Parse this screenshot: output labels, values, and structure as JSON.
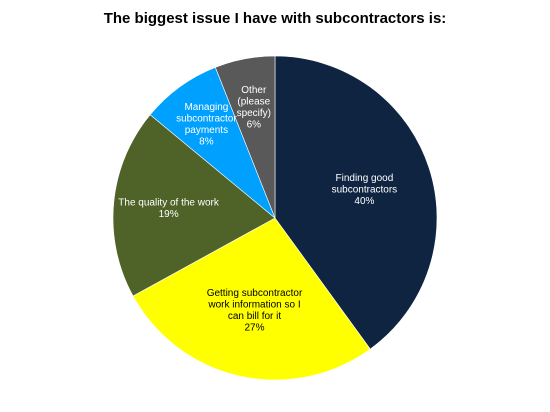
{
  "chart_data": {
    "type": "pie",
    "title": "The biggest issue I have with subcontractors is:",
    "start_angle_deg": 0,
    "direction": "clockwise",
    "slices": [
      {
        "label": "Finding good subcontractors",
        "value": 40,
        "value_label": "40%",
        "color": "#0f2440",
        "text_color": "#ffffff",
        "label_lines": [
          "Finding good",
          "subcontractors",
          "40%"
        ]
      },
      {
        "label": "Getting subcontractor work information so I can bill for it",
        "value": 27,
        "value_label": "27%",
        "color": "#ffff00",
        "text_color": "#000000",
        "label_lines": [
          "Getting subcontractor",
          "work information so I",
          "can bill for it",
          "27%"
        ]
      },
      {
        "label": "The quality of the work",
        "value": 19,
        "value_label": "19%",
        "color": "#4f6228",
        "text_color": "#ffffff",
        "label_lines": [
          "The quality of the work",
          "19%"
        ]
      },
      {
        "label": "Managing subcontractor payments",
        "value": 8,
        "value_label": "8%",
        "color": "#00a0ff",
        "text_color": "#ffffff",
        "label_lines": [
          "Managing",
          "subcontractor",
          "payments",
          "8%"
        ]
      },
      {
        "label": "Other (please specify)",
        "value": 6,
        "value_label": "6%",
        "color": "#595959",
        "text_color": "#ffffff",
        "label_lines": [
          "Other",
          "(please",
          "specify)",
          "6%"
        ]
      }
    ]
  }
}
